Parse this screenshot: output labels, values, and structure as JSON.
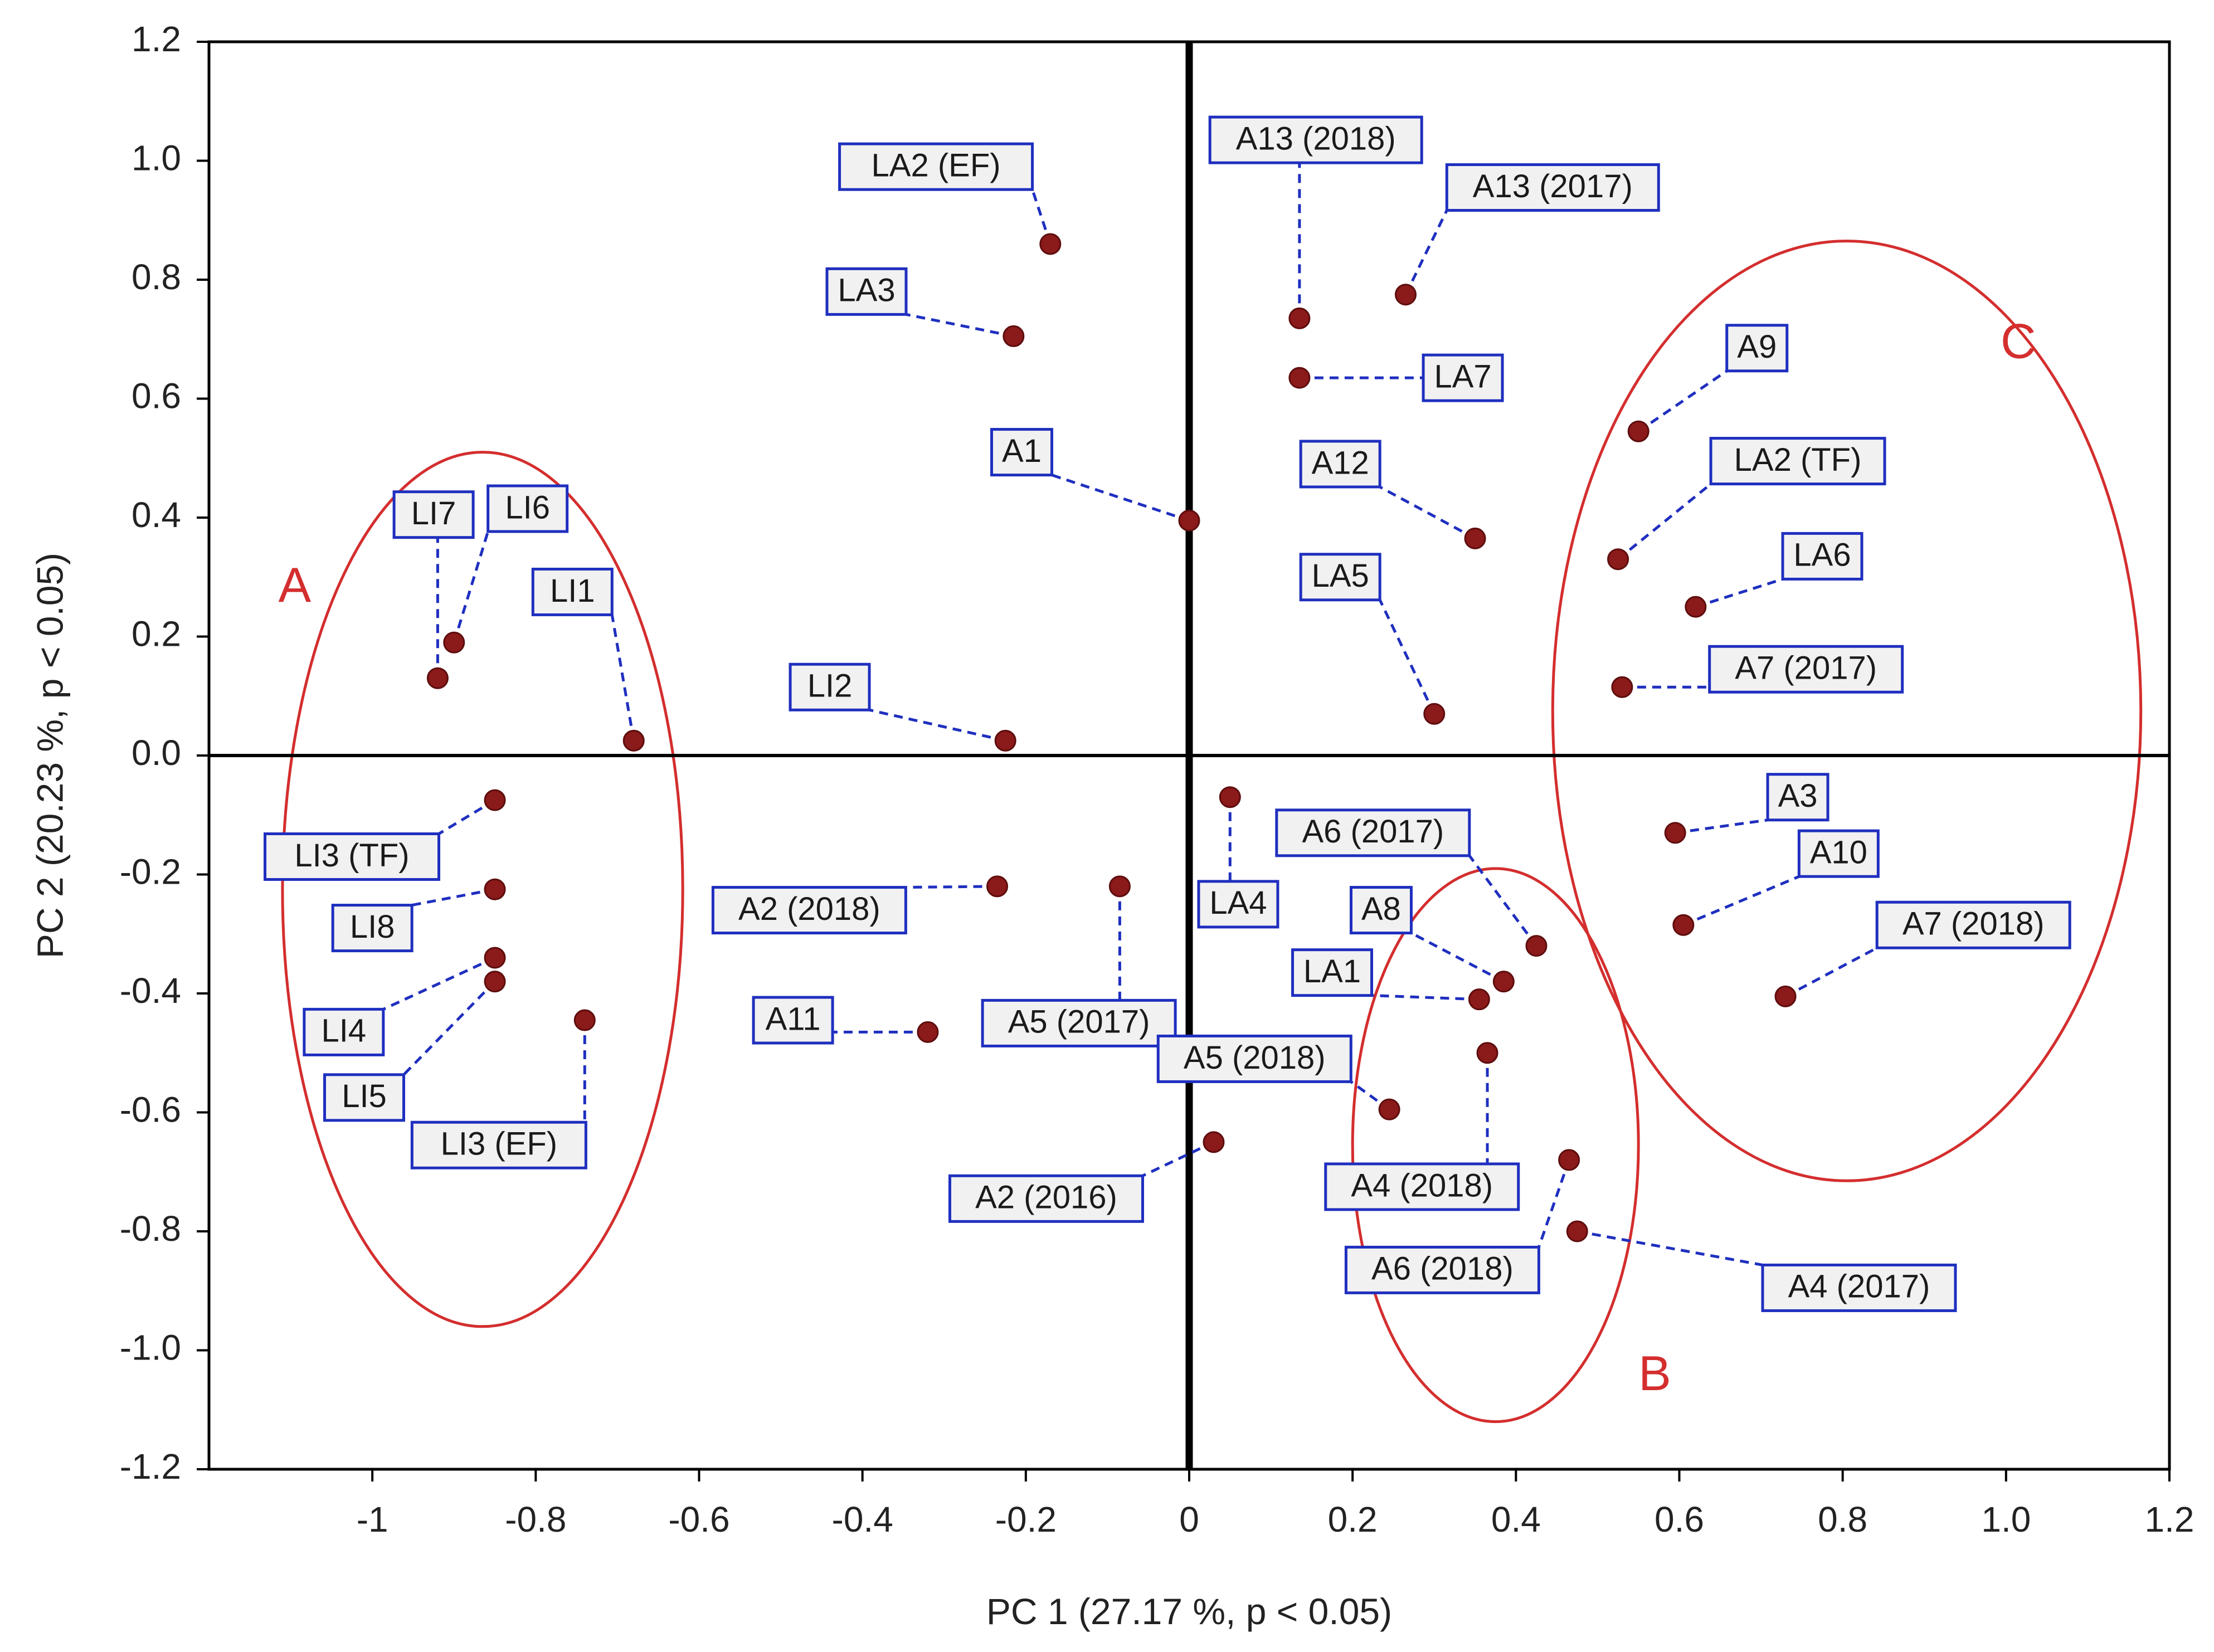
{
  "chart_data": {
    "type": "scatter",
    "title": "",
    "xlabel": "PC 1 (27.17 %,  p < 0.05)",
    "ylabel": "PC 2 (20.23 %,  p < 0.05)",
    "xlim": [
      -1.2,
      1.2
    ],
    "ylim": [
      -1.2,
      1.2
    ],
    "x_ticks": [
      {
        "value": -1.0,
        "label": "-1"
      },
      {
        "value": -0.8,
        "label": "-0.8"
      },
      {
        "value": -0.6,
        "label": "-0.6"
      },
      {
        "value": -0.4,
        "label": "-0.4"
      },
      {
        "value": -0.2,
        "label": "-0.2"
      },
      {
        "value": 0.0,
        "label": "0"
      },
      {
        "value": 0.2,
        "label": "0.2"
      },
      {
        "value": 0.4,
        "label": "0.4"
      },
      {
        "value": 0.6,
        "label": "0.6"
      },
      {
        "value": 0.8,
        "label": "0.8"
      },
      {
        "value": 1.0,
        "label": "1.0"
      },
      {
        "value": 1.2,
        "label": "1.2"
      }
    ],
    "y_ticks": [
      {
        "value": 1.2,
        "label": "1.2"
      },
      {
        "value": 1.0,
        "label": "1.0"
      },
      {
        "value": 0.8,
        "label": "0.8"
      },
      {
        "value": 0.6,
        "label": "0.6"
      },
      {
        "value": 0.4,
        "label": "0.4"
      },
      {
        "value": 0.2,
        "label": "0.2"
      },
      {
        "value": 0.0,
        "label": "0.0"
      },
      {
        "value": -0.2,
        "label": "-0.2"
      },
      {
        "value": -0.4,
        "label": "-0.4"
      },
      {
        "value": -0.6,
        "label": "-0.6"
      },
      {
        "value": -0.8,
        "label": "-0.8"
      },
      {
        "value": -1.0,
        "label": "-1.0"
      },
      {
        "value": -1.2,
        "label": "-1.2"
      }
    ],
    "grid": false,
    "colors": {
      "point": "#8b1a1a",
      "label_border": "#1f2fbf",
      "label_fill": "#f1f1f1",
      "leader": "#1f2fbf",
      "group": "#d42e2e",
      "axis": "#000000"
    },
    "points": [
      {
        "name": "LA2  (EF)",
        "x": -0.17,
        "y": 0.86,
        "lx": -0.31,
        "ly": 0.99
      },
      {
        "name": "LA3",
        "x": -0.215,
        "y": 0.705,
        "lx": -0.395,
        "ly": 0.78
      },
      {
        "name": "A1",
        "x": 0.0,
        "y": 0.395,
        "lx": -0.205,
        "ly": 0.51
      },
      {
        "name": "A13 (2018)",
        "x": 0.135,
        "y": 0.735,
        "lx": 0.155,
        "ly": 1.035
      },
      {
        "name": "A13 (2017)",
        "x": 0.265,
        "y": 0.775,
        "lx": 0.445,
        "ly": 0.955
      },
      {
        "name": "LA7",
        "x": 0.135,
        "y": 0.635,
        "lx": 0.335,
        "ly": 0.635
      },
      {
        "name": "A12",
        "x": 0.35,
        "y": 0.365,
        "lx": 0.185,
        "ly": 0.49
      },
      {
        "name": "LA5",
        "x": 0.3,
        "y": 0.07,
        "lx": 0.185,
        "ly": 0.3
      },
      {
        "name": "LI7",
        "x": -0.92,
        "y": 0.13,
        "lx": -0.925,
        "ly": 0.405
      },
      {
        "name": "LI6",
        "x": -0.9,
        "y": 0.19,
        "lx": -0.81,
        "ly": 0.415
      },
      {
        "name": "LI1",
        "x": -0.68,
        "y": 0.025,
        "lx": -0.755,
        "ly": 0.275
      },
      {
        "name": "LI2",
        "x": -0.225,
        "y": 0.025,
        "lx": -0.44,
        "ly": 0.115
      },
      {
        "name": "A9",
        "x": 0.55,
        "y": 0.545,
        "lx": 0.695,
        "ly": 0.685
      },
      {
        "name": "LA2 (TF)",
        "x": 0.525,
        "y": 0.33,
        "lx": 0.745,
        "ly": 0.495
      },
      {
        "name": "LA6",
        "x": 0.62,
        "y": 0.25,
        "lx": 0.775,
        "ly": 0.335
      },
      {
        "name": "A7 (2017)",
        "x": 0.53,
        "y": 0.115,
        "lx": 0.755,
        "ly": 0.145
      },
      {
        "name": "LI3 (TF)",
        "x": -0.85,
        "y": -0.075,
        "lx": -1.025,
        "ly": -0.17
      },
      {
        "name": "LI8",
        "x": -0.85,
        "y": -0.225,
        "lx": -1.0,
        "ly": -0.29
      },
      {
        "name": "LI4",
        "x": -0.85,
        "y": -0.34,
        "lx": -1.035,
        "ly": -0.465
      },
      {
        "name": "LI5",
        "x": -0.85,
        "y": -0.38,
        "lx": -1.01,
        "ly": -0.575
      },
      {
        "name": "LI3 (EF)",
        "x": -0.74,
        "y": -0.445,
        "lx": -0.845,
        "ly": -0.655
      },
      {
        "name": "A2 (2018)",
        "x": -0.235,
        "y": -0.22,
        "lx": -0.465,
        "ly": -0.26
      },
      {
        "name": "A5 (2017)",
        "x": -0.085,
        "y": -0.22,
        "lx": -0.135,
        "ly": -0.45
      },
      {
        "name": "A11",
        "x": -0.32,
        "y": -0.465,
        "lx": -0.485,
        "ly": -0.445
      },
      {
        "name": "LA4",
        "x": 0.05,
        "y": -0.07,
        "lx": 0.06,
        "ly": -0.25
      },
      {
        "name": "A6 (2017)",
        "x": 0.425,
        "y": -0.32,
        "lx": 0.225,
        "ly": -0.13
      },
      {
        "name": "A8",
        "x": 0.385,
        "y": -0.38,
        "lx": 0.235,
        "ly": -0.26
      },
      {
        "name": "LA1",
        "x": 0.355,
        "y": -0.41,
        "lx": 0.175,
        "ly": -0.365
      },
      {
        "name": "A5 (2018)",
        "x": 0.245,
        "y": -0.595,
        "lx": 0.08,
        "ly": -0.51
      },
      {
        "name": "A2 (2016)",
        "x": 0.03,
        "y": -0.65,
        "lx": -0.175,
        "ly": -0.745
      },
      {
        "name": "A4 (2018)",
        "x": 0.365,
        "y": -0.5,
        "lx": 0.285,
        "ly": -0.725
      },
      {
        "name": "A6 (2018)",
        "x": 0.465,
        "y": -0.68,
        "lx": 0.31,
        "ly": -0.865
      },
      {
        "name": "A4 (2017)",
        "x": 0.475,
        "y": -0.8,
        "lx": 0.82,
        "ly": -0.895
      },
      {
        "name": "A3",
        "x": 0.595,
        "y": -0.13,
        "lx": 0.745,
        "ly": -0.07
      },
      {
        "name": "A10",
        "x": 0.605,
        "y": -0.285,
        "lx": 0.795,
        "ly": -0.165
      },
      {
        "name": "A7 (2018)",
        "x": 0.73,
        "y": -0.405,
        "lx": 0.96,
        "ly": -0.285
      }
    ],
    "groups": [
      {
        "label": "A",
        "cx": -0.865,
        "cy": -0.225,
        "rx": 0.245,
        "ry": 0.735,
        "lx": -1.095,
        "ly": 0.28
      },
      {
        "label": "B",
        "cx": 0.375,
        "cy": -0.655,
        "rx": 0.175,
        "ry": 0.465,
        "lx": 0.57,
        "ly": -1.045
      },
      {
        "label": "C",
        "cx": 0.805,
        "cy": 0.075,
        "rx": 0.36,
        "ry": 0.79,
        "lx": 1.015,
        "ly": 0.69
      }
    ]
  }
}
